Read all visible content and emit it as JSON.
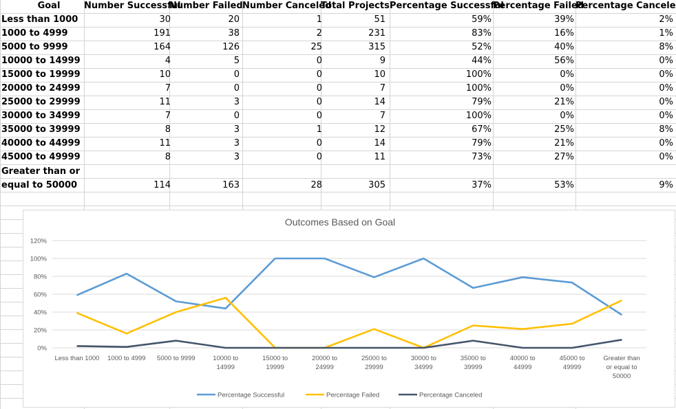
{
  "table": {
    "headers": [
      "Goal",
      "Number Successful",
      "Number Failed",
      "Number Canceled",
      "Total Projects",
      "Percentage Successful",
      "Percentage Failed",
      "Percentage Canceled"
    ],
    "rows": [
      {
        "goal": "Less than 1000",
        "cells": [
          "30",
          "20",
          "1",
          "51",
          "59%",
          "39%",
          "2%"
        ]
      },
      {
        "goal": "1000 to 4999",
        "cells": [
          "191",
          "38",
          "2",
          "231",
          "83%",
          "16%",
          "1%"
        ]
      },
      {
        "goal": "5000 to 9999",
        "cells": [
          "164",
          "126",
          "25",
          "315",
          "52%",
          "40%",
          "8%"
        ]
      },
      {
        "goal": "10000 to 14999",
        "cells": [
          "4",
          "5",
          "0",
          "9",
          "44%",
          "56%",
          "0%"
        ]
      },
      {
        "goal": "15000 to 19999",
        "cells": [
          "10",
          "0",
          "0",
          "10",
          "100%",
          "0%",
          "0%"
        ]
      },
      {
        "goal": "20000 to 24999",
        "cells": [
          "7",
          "0",
          "0",
          "7",
          "100%",
          "0%",
          "0%"
        ]
      },
      {
        "goal": "25000 to 29999",
        "cells": [
          "11",
          "3",
          "0",
          "14",
          "79%",
          "21%",
          "0%"
        ]
      },
      {
        "goal": "30000 to 34999",
        "cells": [
          "7",
          "0",
          "0",
          "7",
          "100%",
          "0%",
          "0%"
        ]
      },
      {
        "goal": "35000 to 39999",
        "cells": [
          "8",
          "3",
          "1",
          "12",
          "67%",
          "25%",
          "8%"
        ]
      },
      {
        "goal": "40000 to 44999",
        "cells": [
          "11",
          "3",
          "0",
          "14",
          "79%",
          "21%",
          "0%"
        ]
      },
      {
        "goal": "45000 to 49999",
        "cells": [
          "8",
          "3",
          "0",
          "11",
          "73%",
          "27%",
          "0%"
        ]
      },
      {
        "goal": "Greater than or equal to 50000",
        "goal_lines": [
          "Greater than or",
          "equal to 50000"
        ],
        "cells": [
          "114",
          "163",
          "28",
          "305",
          "37%",
          "53%",
          "9%"
        ]
      }
    ]
  },
  "chart_data": {
    "type": "line",
    "title": "Outcomes Based on Goal",
    "categories": [
      "Less than 1000",
      "1000 to 4999",
      "5000 to 9999",
      "10000 to 14999",
      "15000 to 19999",
      "20000 to 24999",
      "25000 to 29999",
      "30000 to 34999",
      "35000 to 39999",
      "40000 to 44999",
      "45000 to 49999",
      "Greater than or equal to 50000"
    ],
    "category_lines": [
      [
        "Less than 1000"
      ],
      [
        "1000 to 4999"
      ],
      [
        "5000 to 9999"
      ],
      [
        "10000 to",
        "14999"
      ],
      [
        "15000 to",
        "19999"
      ],
      [
        "20000 to",
        "24999"
      ],
      [
        "25000 to",
        "29999"
      ],
      [
        "30000 to",
        "34999"
      ],
      [
        "35000 to",
        "39999"
      ],
      [
        "40000 to",
        "44999"
      ],
      [
        "45000 to",
        "49999"
      ],
      [
        "Greater than",
        "or equal to",
        "50000"
      ]
    ],
    "y_ticks": [
      "0%",
      "20%",
      "40%",
      "60%",
      "80%",
      "100%",
      "120%"
    ],
    "ylim": [
      0,
      120
    ],
    "grid": true,
    "legend_position": "bottom",
    "series": [
      {
        "name": "Percentage Successful",
        "color": "#5b9bd5",
        "values": [
          59,
          83,
          52,
          44,
          100,
          100,
          79,
          100,
          67,
          79,
          73,
          37
        ]
      },
      {
        "name": "Percentage Failed",
        "color": "#ffc000",
        "values": [
          39,
          16,
          40,
          56,
          0,
          0,
          21,
          0,
          25,
          21,
          27,
          53
        ]
      },
      {
        "name": "Percentage Canceled",
        "color": "#44546a",
        "values": [
          2,
          1,
          8,
          0,
          0,
          0,
          0,
          0,
          8,
          0,
          0,
          9
        ]
      }
    ]
  }
}
